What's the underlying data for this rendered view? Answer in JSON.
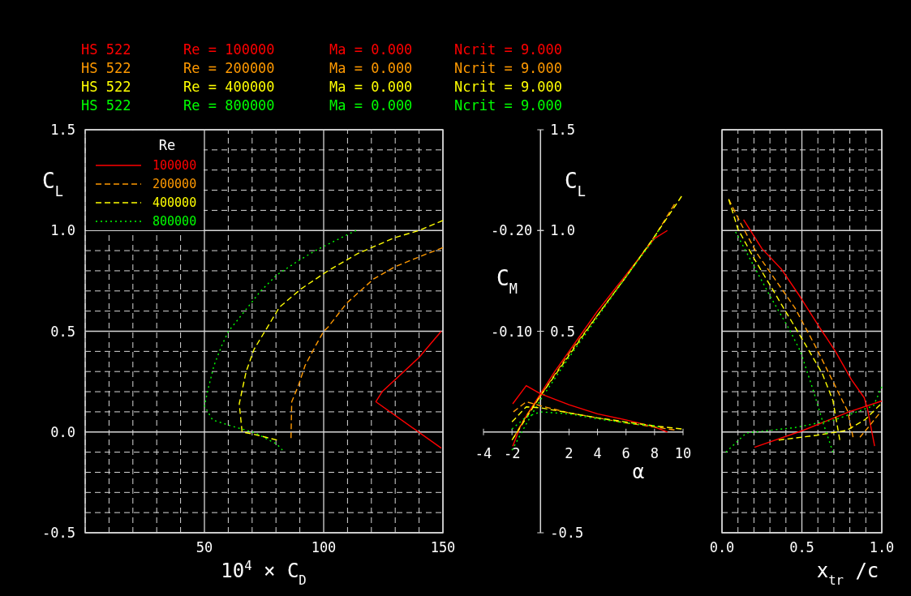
{
  "chart_data": [
    {
      "type": "line",
      "xlabel": "10$^{4}$ × C$_{D}$",
      "ylabel": "C$_{L}$",
      "legend_title": "Re",
      "legend": "top left",
      "grid": true,
      "annotations": [
        "HS 522  Re = 100000  Ma = 0.000  Ncrit = 9.000",
        "HS 522  Re = 200000  Ma = 0.000  Ncrit = 9.000",
        "HS 522  Re = 400000  Ma = 0.000  Ncrit = 9.000",
        "HS 522  Re = 800000  Ma = 0.000  Ncrit = 9.000"
      ],
      "xlim": [
        0,
        150
      ],
      "ylim": [
        -0.5,
        1.5
      ],
      "xticks": [
        {
          "value": 0,
          "label": null
        },
        {
          "value": 10,
          "label": null
        },
        {
          "value": 20,
          "label": null
        },
        {
          "value": 30,
          "label": null
        },
        {
          "value": 40,
          "label": null
        },
        50,
        {
          "value": 60,
          "label": null
        },
        {
          "value": 70,
          "label": null
        },
        {
          "value": 80,
          "label": null
        },
        {
          "value": 90,
          "label": null
        },
        100,
        {
          "value": 110,
          "label": null
        },
        {
          "value": 120,
          "label": null
        },
        {
          "value": 130,
          "label": null
        },
        {
          "value": 140,
          "label": null
        },
        150
      ],
      "yticks": [
        -0.5,
        {
          "value": -0.4,
          "label": null
        },
        {
          "value": -0.3,
          "label": null
        },
        {
          "value": -0.2,
          "label": null
        },
        {
          "value": -0.1,
          "label": null
        },
        {
          "value": 0,
          "label": "0.0"
        },
        {
          "value": 0.1,
          "label": null
        },
        {
          "value": 0.2,
          "label": null
        },
        {
          "value": 0.3,
          "label": null
        },
        {
          "value": 0.4,
          "label": null
        },
        0.5,
        {
          "value": 0.6,
          "label": null
        },
        {
          "value": 0.7,
          "label": null
        },
        {
          "value": 0.8,
          "label": null
        },
        {
          "value": 0.9,
          "label": null
        },
        {
          "value": 1,
          "label": "1.0"
        },
        {
          "value": 1.1,
          "label": null
        },
        {
          "value": 1.2,
          "label": null
        },
        {
          "value": 1.3,
          "label": null
        },
        {
          "value": 1.4,
          "label": null
        },
        1.5
      ],
      "series": [
        {
          "name": "100000",
          "color": "#ff0000",
          "line_style": "solid",
          "x": [
            149.3,
            121.9,
            124.5,
            140,
            149.3
          ],
          "values": [
            -0.08,
            0.15,
            0.2,
            0.37,
            0.5
          ]
        },
        {
          "name": "200000",
          "color": "#ff9900",
          "line_style": "dashed",
          "x": [
            86.3,
            86.6,
            89.4,
            92.2,
            96.7,
            100,
            101.8,
            109.7,
            121,
            129.9,
            142.3,
            150
          ],
          "values": [
            -0.03,
            0.15,
            0.23,
            0.33,
            0.43,
            0.5,
            0.52,
            0.64,
            0.76,
            0.82,
            0.88,
            0.915
          ]
        },
        {
          "name": "400000",
          "color": "#ffff00",
          "line_style": "dashed",
          "x": [
            80.4,
            70.3,
            65.8,
            64.6,
            67.5,
            70.8,
            75.9,
            81.5,
            90.5,
            101.8,
            114.2,
            129.9,
            140,
            150
          ],
          "values": [
            -0.04,
            -0.01,
            0,
            0.14,
            0.3,
            0.41,
            0.51,
            0.62,
            0.71,
            0.8,
            0.885,
            0.965,
            1,
            1.05
          ]
        },
        {
          "name": "800000",
          "color": "#00ff00",
          "line_style": "dotted",
          "x": [
            82.7,
            80.4,
            71.4,
            61.3,
            53.4,
            50,
            51.7,
            54,
            57.3,
            60.1,
            66.9,
            73.6,
            80.4,
            89.4,
            97.3,
            107.5,
            113.6
          ],
          "values": [
            -0.09,
            -0.06,
            -0.005,
            0.03,
            0.06,
            0.13,
            0.22,
            0.33,
            0.43,
            0.5,
            0.6,
            0.7,
            0.78,
            0.85,
            0.905,
            0.965,
            1
          ]
        }
      ]
    },
    {
      "type": "line",
      "xlabel": "α",
      "ylabel": "C$_{L}$",
      "y2label": "C$_{M}$",
      "xlim": [
        -4,
        10
      ],
      "ylim": [
        -0.5,
        1.5
      ],
      "y2lim": [
        0.1,
        -0.3
      ],
      "xticks": [
        -4,
        -2,
        {
          "value": 0,
          "label": null
        },
        2,
        4,
        6,
        8,
        10
      ],
      "yticks": [
        -0.5,
        {
          "value": 0,
          "label": null
        },
        0.5,
        {
          "value": 1,
          "label": "1.0"
        },
        1.5
      ],
      "y2ticks": [
        {
          "value": -0.1,
          "label": "-0.10"
        },
        {
          "value": -0.2,
          "label": "-0.20"
        }
      ],
      "series": [
        {
          "color": "#ff0000",
          "line_style": "solid",
          "x": [
            -1.95,
            -1.4,
            -1,
            0,
            1,
            2,
            3,
            4,
            5,
            6,
            7,
            8,
            8.9
          ],
          "values": [
            -0.07,
            0.03,
            0.08,
            0.19,
            0.3,
            0.4,
            0.5,
            0.6,
            0.69,
            0.78,
            0.87,
            0.96,
            1.0
          ]
        },
        {
          "color": "#ff9900",
          "line_style": "dashed",
          "x": [
            -1.9,
            -1,
            0,
            2,
            4,
            6,
            8,
            9.4
          ],
          "values": [
            -0.03,
            0.08,
            0.18,
            0.39,
            0.58,
            0.77,
            0.97,
            1.13
          ]
        },
        {
          "color": "#ffff00",
          "line_style": "dashed",
          "x": [
            -2,
            -1,
            0,
            2,
            4,
            6,
            8,
            9.9
          ],
          "values": [
            -0.04,
            0.07,
            0.18,
            0.38,
            0.58,
            0.77,
            0.97,
            1.17
          ]
        },
        {
          "color": "#00ff00",
          "line_style": "dotted",
          "x": [
            -2,
            -1,
            0,
            2,
            4,
            6,
            8,
            8.3
          ],
          "values": [
            -0.09,
            0.04,
            0.16,
            0.37,
            0.57,
            0.77,
            0.96,
            1.0
          ]
        },
        {
          "color": "#ff0000",
          "line_style": "solid",
          "axis": "y2",
          "x": [
            -1.95,
            -1,
            0,
            2,
            4,
            6,
            8,
            8.9
          ],
          "values": [
            -0.028,
            -0.046,
            -0.038,
            -0.027,
            -0.018,
            -0.012,
            -0.005,
            0.0
          ]
        },
        {
          "color": "#ff9900",
          "line_style": "dashed",
          "axis": "y2",
          "x": [
            -1.9,
            -1,
            0,
            2,
            4,
            6,
            8,
            9.4
          ],
          "values": [
            -0.02,
            -0.03,
            -0.026,
            -0.019,
            -0.014,
            -0.009,
            -0.005,
            -0.002
          ]
        },
        {
          "color": "#ffff00",
          "line_style": "dashed",
          "axis": "y2",
          "x": [
            -2,
            -1,
            0,
            2,
            4,
            6,
            8,
            9.9
          ],
          "values": [
            -0.01,
            -0.025,
            -0.024,
            -0.019,
            -0.014,
            -0.01,
            -0.006,
            -0.003
          ]
        },
        {
          "color": "#00ff00",
          "line_style": "dotted",
          "axis": "y2",
          "x": [
            -2,
            -1,
            0,
            2,
            4,
            6,
            8,
            8.3
          ],
          "values": [
            -0.003,
            -0.015,
            -0.02,
            -0.018,
            -0.013,
            -0.009,
            -0.006,
            -0.005
          ]
        }
      ]
    },
    {
      "type": "line",
      "xlabel": "x$_{tr}$ /c",
      "grid": true,
      "tick_labels": "x",
      "xlim": [
        0,
        1
      ],
      "ylim": [
        -0.5,
        1.5
      ],
      "xticks": [
        {
          "value": 0,
          "label": "0.0"
        },
        {
          "value": 0.1,
          "label": null
        },
        {
          "value": 0.2,
          "label": null
        },
        {
          "value": 0.3,
          "label": null
        },
        {
          "value": 0.4,
          "label": null
        },
        {
          "value": 0.5,
          "label": "0.5"
        },
        {
          "value": 0.6,
          "label": null
        },
        {
          "value": 0.7,
          "label": null
        },
        {
          "value": 0.8,
          "label": null
        },
        {
          "value": 0.9,
          "label": null
        },
        {
          "value": 1,
          "label": "1.0"
        }
      ],
      "yticks": [
        -0.5,
        {
          "value": -0.4,
          "label": null
        },
        {
          "value": -0.3,
          "label": null
        },
        {
          "value": -0.2,
          "label": null
        },
        {
          "value": -0.1,
          "label": null
        },
        0,
        {
          "value": 0.1,
          "label": null
        },
        {
          "value": 0.2,
          "label": null
        },
        {
          "value": 0.3,
          "label": null
        },
        {
          "value": 0.4,
          "label": null
        },
        0.5,
        {
          "value": 0.6,
          "label": null
        },
        {
          "value": 0.7,
          "label": null
        },
        {
          "value": 0.8,
          "label": null
        },
        {
          "value": 0.9,
          "label": null
        },
        1,
        {
          "value": 1.1,
          "label": null
        },
        {
          "value": 1.2,
          "label": null
        },
        {
          "value": 1.3,
          "label": null
        },
        {
          "value": 1.4,
          "label": null
        },
        1.5
      ],
      "series": [
        {
          "color": "#ff0000",
          "line_style": "solid",
          "x": [
            0.135,
            0.25,
            0.37,
            0.49,
            0.61,
            0.71,
            0.81,
            0.89,
            0.91,
            0.955
          ],
          "values": [
            1.054,
            0.91,
            0.81,
            0.67,
            0.52,
            0.4,
            0.26,
            0.17,
            0.116,
            -0.07
          ]
        },
        {
          "color": "#ff0000",
          "line_style": "solid",
          "x": [
            0.203,
            0.508,
            0.795,
            1.0
          ],
          "values": [
            -0.076,
            0.008,
            0.1,
            0.154
          ]
        },
        {
          "color": "#ff9900",
          "line_style": "dashed",
          "x": [
            0.042,
            0.118,
            0.22,
            0.339,
            0.457,
            0.593,
            0.694,
            0.787,
            0.82
          ],
          "values": [
            1.155,
            1.034,
            0.885,
            0.75,
            0.615,
            0.413,
            0.251,
            0.103,
            -0.026
          ]
        },
        {
          "color": "#ff9900",
          "line_style": "dashed",
          "x": [
            0.863,
            0.914,
            0.982
          ],
          "values": [
            -0.026,
            0.022,
            0.089
          ]
        },
        {
          "color": "#ffff00",
          "line_style": "dashed",
          "x": [
            0.042,
            0.1,
            0.203,
            0.305,
            0.406,
            0.508,
            0.627,
            0.694,
            0.737
          ],
          "values": [
            1.155,
            1.007,
            0.858,
            0.723,
            0.588,
            0.453,
            0.291,
            0.157,
            -0.04
          ]
        },
        {
          "color": "#ffff00",
          "line_style": "dashed",
          "x": [
            0.355,
            0.593,
            0.78,
            0.897,
            0.99
          ],
          "values": [
            -0.04,
            -0.016,
            0.008,
            0.062,
            0.136
          ]
        },
        {
          "color": "#00ff00",
          "line_style": "dotted",
          "x": [
            0.085,
            0.203,
            0.305,
            0.423,
            0.491,
            0.575,
            0.626,
            0.694
          ],
          "values": [
            0.993,
            0.818,
            0.669,
            0.507,
            0.4,
            0.197,
            0.062,
            -0.1
          ]
        },
        {
          "color": "#00ff00",
          "line_style": "dotted",
          "x": [
            0.025,
            0.152,
            0.457,
            0.711,
            0.948,
            1.0
          ],
          "values": [
            -0.1,
            -0.005,
            0.022,
            0.062,
            0.13,
            0.224
          ]
        }
      ]
    }
  ]
}
